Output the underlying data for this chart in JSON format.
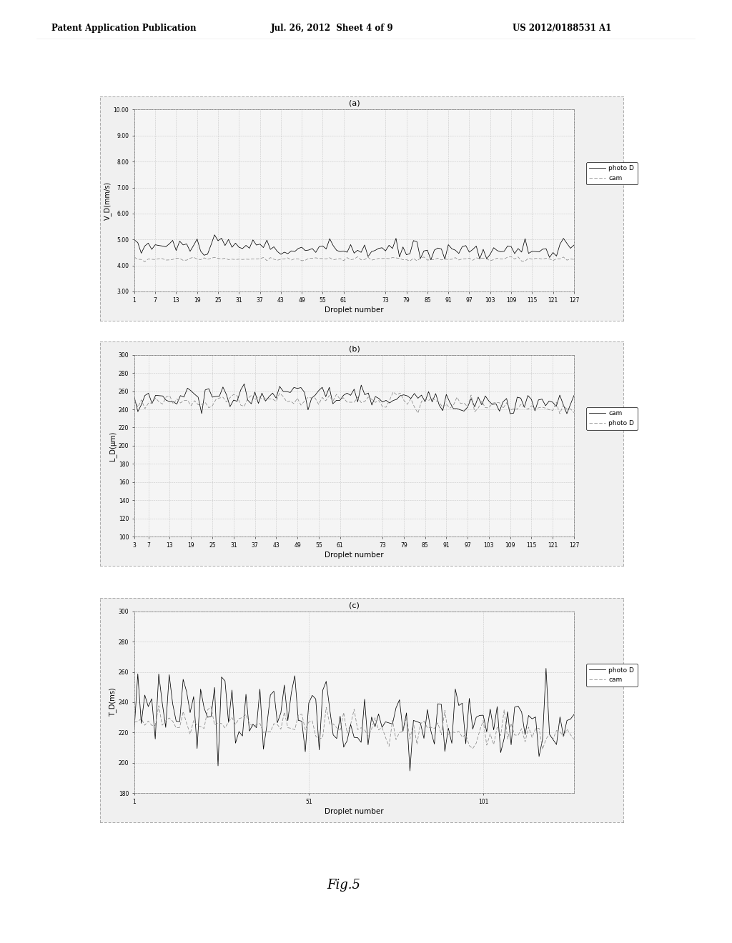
{
  "page_header_left": "Patent Application Publication",
  "page_header_mid": "Jul. 26, 2012  Sheet 4 of 9",
  "page_header_right": "US 2012/0188531 A1",
  "fig_label": "Fig.5",
  "chart_a": {
    "title": "(a)",
    "xlabel": "Droplet number",
    "ylabel": "V_D(mm/s)",
    "ylim": [
      3.0,
      10.0
    ],
    "ytick_vals": [
      3.0,
      4.0,
      5.0,
      6.0,
      7.0,
      8.0,
      9.0,
      10.0
    ],
    "ytick_labels": [
      "3.00",
      "4.00",
      "5.00",
      "6.00",
      "7.00",
      "8.00",
      "9.00",
      "10.00"
    ],
    "xtick_vals": [
      1,
      7,
      13,
      19,
      25,
      31,
      37,
      43,
      49,
      55,
      61,
      73,
      79,
      85,
      91,
      97,
      103,
      109,
      115,
      121,
      127
    ],
    "xlim": [
      1,
      127
    ],
    "legend": [
      "photo D",
      "cam"
    ],
    "photo_D_mean": 4.6,
    "photo_D_noise": 0.18,
    "cam_mean": 4.25,
    "cam_noise": 0.04,
    "n_points": 127
  },
  "chart_b": {
    "title": "(b)",
    "xlabel": "Droplet number",
    "ylabel": "L_D(μm)",
    "ylim": [
      100,
      300
    ],
    "ytick_vals": [
      100,
      120,
      140,
      160,
      180,
      200,
      220,
      240,
      260,
      280,
      300
    ],
    "ytick_labels": [
      "100",
      "120",
      "140",
      "160",
      "180",
      "200",
      "220",
      "240",
      "260",
      "280",
      "300"
    ],
    "xtick_vals": [
      3,
      7,
      13,
      19,
      25,
      31,
      37,
      43,
      49,
      55,
      61,
      73,
      79,
      85,
      91,
      97,
      103,
      109,
      115,
      121,
      127
    ],
    "xlim": [
      3,
      127
    ],
    "legend": [
      "cam",
      "photo D"
    ],
    "photo_D_mean": 251,
    "photo_D_noise": 6,
    "cam_mean": 247,
    "cam_noise": 4,
    "n_points": 127
  },
  "chart_c": {
    "title": "(c)",
    "xlabel": "Droplet number",
    "ylabel": "T_D(ms)",
    "ylim": [
      180,
      300
    ],
    "ytick_vals": [
      180,
      200,
      220,
      240,
      260,
      280,
      300
    ],
    "ytick_labels": [
      "180",
      "200",
      "220",
      "240",
      "260",
      "280",
      "300"
    ],
    "xtick_vals": [
      1,
      51,
      101
    ],
    "xlim": [
      1,
      127
    ],
    "legend": [
      "photo D",
      "cam"
    ],
    "photo_D_mean": 234,
    "photo_D_noise": 13,
    "cam_mean": 226,
    "cam_noise": 5,
    "n_points": 127
  },
  "bg_color": "#ffffff",
  "chart_bg": "#f5f5f5",
  "line_color_photo": "#000000",
  "line_color_cam": "#888888",
  "grid_color": "#999999",
  "border_color": "#888888",
  "outer_border_color": "#aaaaaa"
}
